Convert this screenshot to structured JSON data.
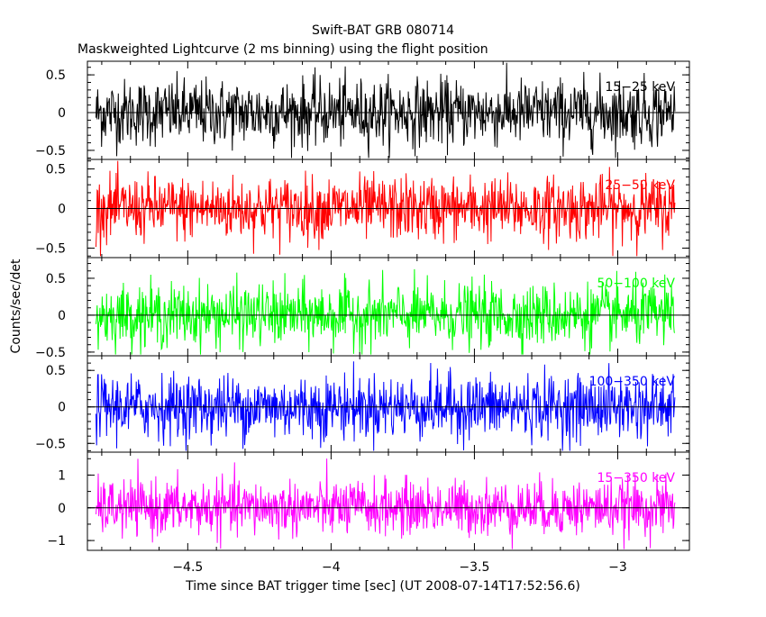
{
  "chart_data": {
    "type": "line",
    "title": "Swift-BAT GRB 080714",
    "subtitle": "Maskweighted Lightcurve (2 ms binning) using the flight position",
    "xlabel": "Time since BAT trigger time [sec] (UT 2008-07-14T17:52:56.6)",
    "ylabel": "Counts/sec/det",
    "xlim": [
      -4.85,
      -2.75
    ],
    "x_ticks": [
      -4.5,
      -4,
      -3.5,
      -3
    ],
    "x_tick_labels": [
      "−4.5",
      "−4",
      "−3.5",
      "−3"
    ],
    "x_range_data": [
      -4.82,
      -2.8
    ],
    "grid": false,
    "panels": [
      {
        "name": "15−25 keV",
        "color": "#000000",
        "ylim": [
          -0.62,
          0.68
        ],
        "yticks": [
          -0.5,
          0,
          0.5
        ],
        "ytick_labels": [
          "−0.5",
          "0",
          "0.5"
        ],
        "noise_amplitude": 0.22
      },
      {
        "name": "25−50 keV",
        "color": "#ff0000",
        "ylim": [
          -0.62,
          0.62
        ],
        "yticks": [
          -0.5,
          0,
          0.5
        ],
        "ytick_labels": [
          "−0.5",
          "0",
          "0.5"
        ],
        "noise_amplitude": 0.2
      },
      {
        "name": "50−100 keV",
        "color": "#00ff00",
        "ylim": [
          -0.55,
          0.78
        ],
        "yticks": [
          -0.5,
          0,
          0.5
        ],
        "ytick_labels": [
          "−0.5",
          "0",
          "0.5"
        ],
        "noise_amplitude": 0.21
      },
      {
        "name": "100−350 keV",
        "color": "#0000ff",
        "ylim": [
          -0.62,
          0.7
        ],
        "yticks": [
          -0.5,
          0,
          0.5
        ],
        "ytick_labels": [
          "−0.5",
          "0",
          "0.5"
        ],
        "noise_amplitude": 0.22
      },
      {
        "name": "15−350 keV",
        "color": "#ff00ff",
        "ylim": [
          -1.3,
          1.7
        ],
        "yticks": [
          -1,
          0,
          1
        ],
        "ytick_labels": [
          "−1",
          "0",
          "1"
        ],
        "y_minor_ticks": [
          -0.5,
          0.5,
          1.5
        ],
        "noise_amplitude": 0.42
      }
    ]
  }
}
